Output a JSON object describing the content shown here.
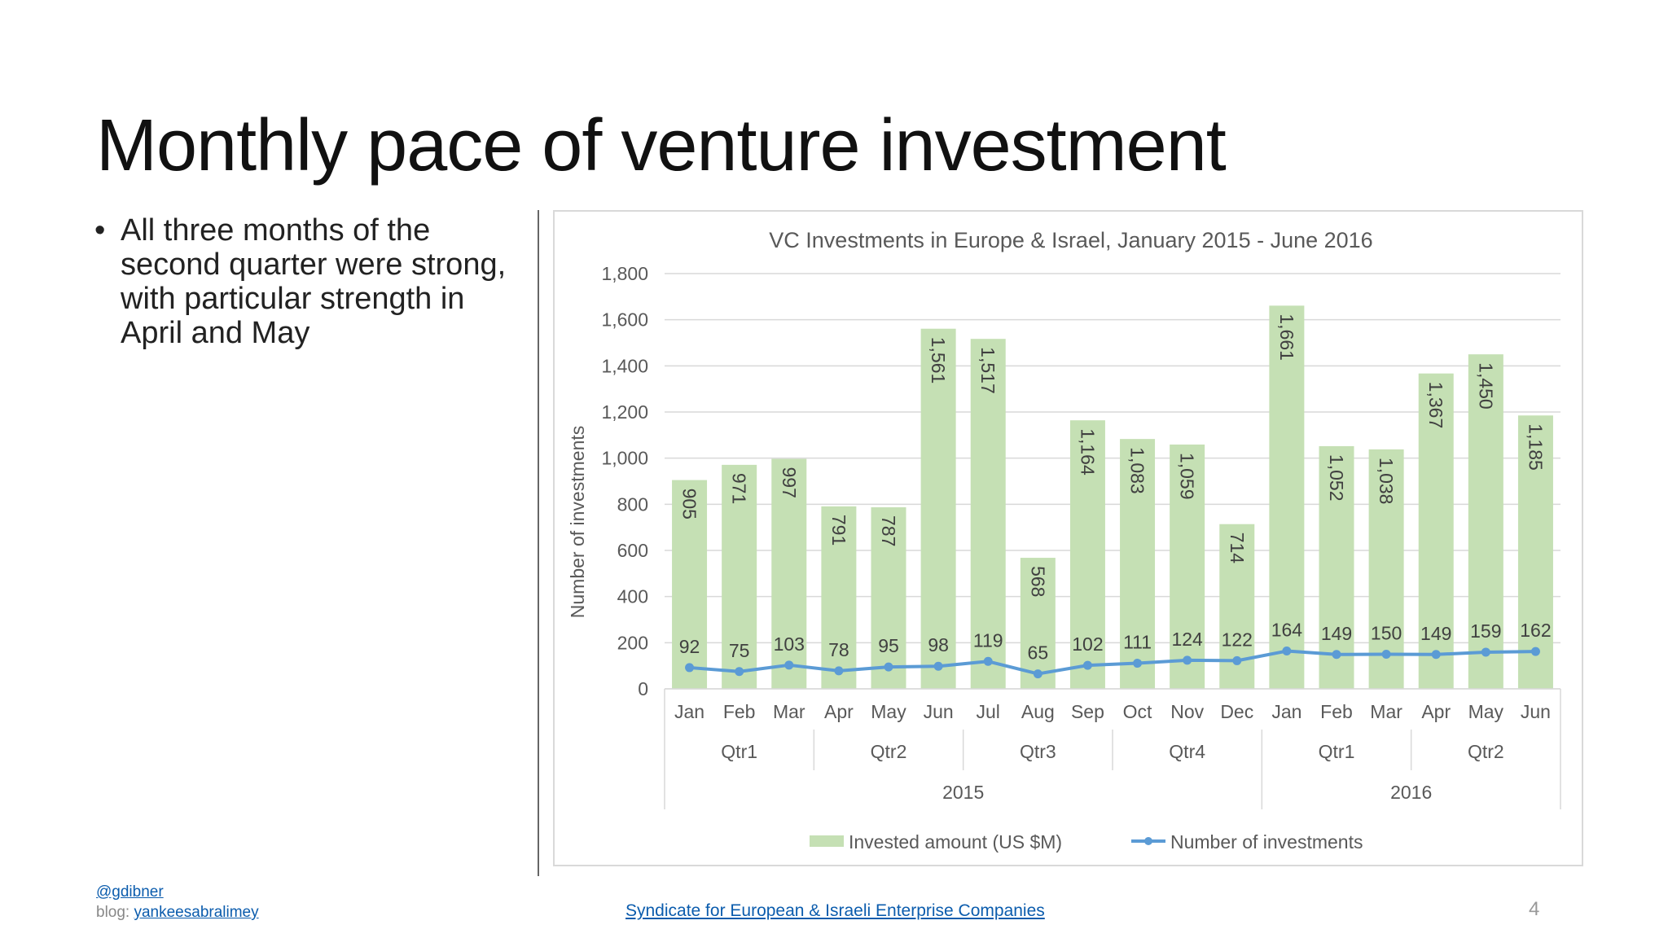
{
  "slide": {
    "title": "Monthly pace of venture investment",
    "bullets": [
      "All three months of the second quarter were strong, with particular strength in April and May"
    ]
  },
  "footer": {
    "handle": "@gdibner",
    "blog_prefix": "blog:",
    "blog_link": "yankeesabralimey",
    "source_link": "Syndicate for European & Israeli Enterprise Companies",
    "page_number": "4"
  },
  "colors": {
    "bar": "#c5e0b4",
    "line": "#5b9bd5",
    "grid": "#d9d9d9"
  },
  "chart_data": {
    "type": "bar",
    "title": "VC Investments in Europe & Israel,  January 2015 - June 2016",
    "ylabel": "Number of investments",
    "ylim": [
      0,
      1800
    ],
    "yticks": [
      "0",
      "200",
      "400",
      "600",
      "800",
      "1,000",
      "1,200",
      "1,400",
      "1,600",
      "1,800"
    ],
    "categories": [
      "Jan",
      "Feb",
      "Mar",
      "Apr",
      "May",
      "Jun",
      "Jul",
      "Aug",
      "Sep",
      "Oct",
      "Nov",
      "Dec",
      "Jan",
      "Feb",
      "Mar",
      "Apr",
      "May",
      "Jun"
    ],
    "quarters": [
      {
        "label": "Qtr1",
        "months": 3
      },
      {
        "label": "Qtr2",
        "months": 3
      },
      {
        "label": "Qtr3",
        "months": 3
      },
      {
        "label": "Qtr4",
        "months": 3
      },
      {
        "label": "Qtr1",
        "months": 3
      },
      {
        "label": "Qtr2",
        "months": 3
      }
    ],
    "years": [
      {
        "label": "2015",
        "months": 12
      },
      {
        "label": "2016",
        "months": 6
      }
    ],
    "series": [
      {
        "name": "Invested amount (US $M)",
        "type": "bar",
        "values": [
          905,
          971,
          997,
          791,
          787,
          1561,
          1517,
          568,
          1164,
          1083,
          1059,
          714,
          1661,
          1052,
          1038,
          1367,
          1450,
          1185
        ],
        "labels": [
          "905",
          "971",
          "997",
          "791",
          "787",
          "1,561",
          "1,517",
          "568",
          "1,164",
          "1,083",
          "1,059",
          "714",
          "1,661",
          "1,052",
          "1,038",
          "1,367",
          "1,450",
          "1,185"
        ]
      },
      {
        "name": "Number of investments",
        "type": "line",
        "values": [
          92,
          75,
          103,
          78,
          95,
          98,
          119,
          65,
          102,
          111,
          124,
          122,
          164,
          149,
          150,
          149,
          159,
          162
        ],
        "labels": [
          "92",
          "75",
          "103",
          "78",
          "95",
          "98",
          "119",
          "65",
          "102",
          "111",
          "124",
          "122",
          "164",
          "149",
          "150",
          "149",
          "159",
          "162"
        ]
      }
    ],
    "legend_position": "bottom",
    "grid": true
  }
}
